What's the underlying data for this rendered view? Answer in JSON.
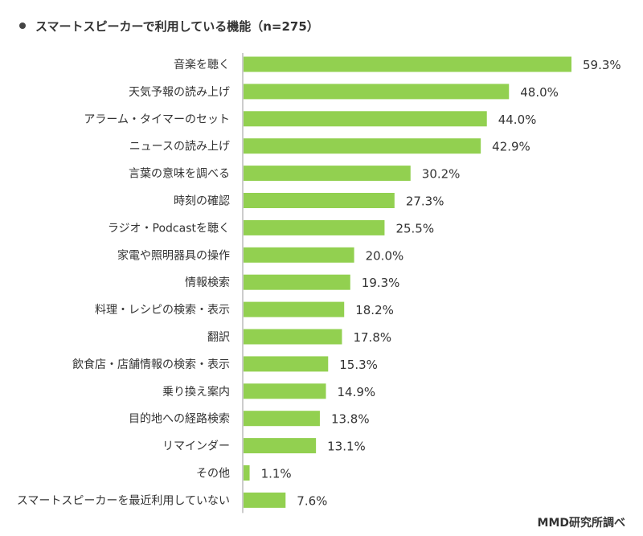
{
  "chart_data": {
    "type": "bar",
    "orientation": "horizontal",
    "title": "スマートスピーカーで利用している機能（n=275）",
    "categories": [
      "音楽を聴く",
      "天気予報の読み上げ",
      "アラーム・タイマーのセット",
      "ニュースの読み上げ",
      "言葉の意味を調べる",
      "時刻の確認",
      "ラジオ・Podcastを聴く",
      "家電や照明器具の操作",
      "情報検索",
      "料理・レシピの検索・表示",
      "翻訳",
      "飲食店・店舗情報の検索・表示",
      "乗り換え案内",
      "目的地への経路検索",
      "リマインダー",
      "その他",
      "スマートスピーカーを最近利用していない"
    ],
    "values": [
      59.3,
      48.0,
      44.0,
      42.9,
      30.2,
      27.3,
      25.5,
      20.0,
      19.3,
      18.2,
      17.8,
      15.3,
      14.9,
      13.8,
      13.1,
      1.1,
      7.6
    ],
    "value_labels": [
      "59.3%",
      "48.0%",
      "44.0%",
      "42.9%",
      "30.2%",
      "27.3%",
      "25.5%",
      "20.0%",
      "19.3%",
      "18.2%",
      "17.8%",
      "15.3%",
      "14.9%",
      "13.8%",
      "13.1%",
      "1.1%",
      "7.6%"
    ],
    "unit": "%",
    "xlim": [
      0,
      60
    ],
    "grid": false,
    "legend": "none",
    "bar_color": "#92d050",
    "axis_color": "#999999"
  },
  "source": "MMD研究所調べ"
}
